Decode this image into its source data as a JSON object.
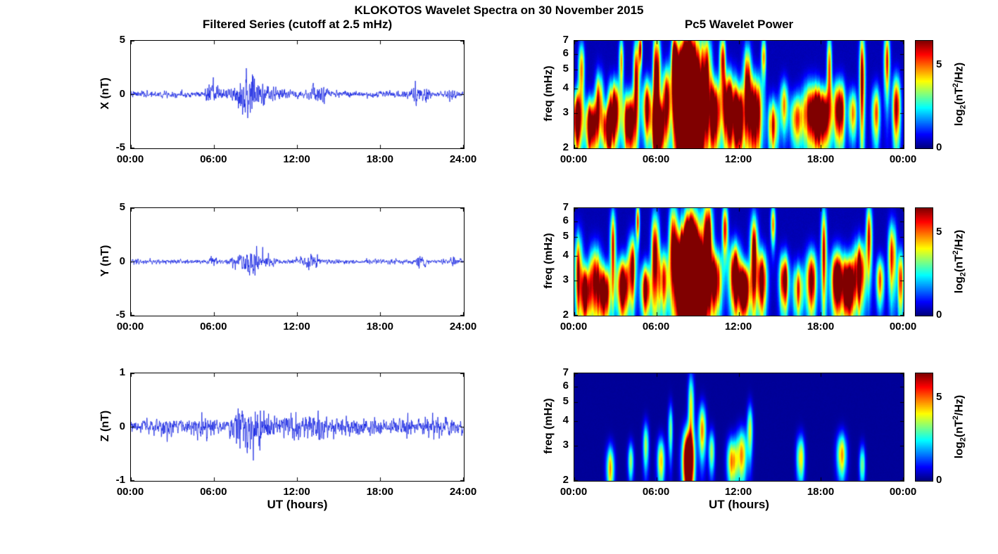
{
  "title": "KLOKOTOS Wavelet Spectra on 30 November 2015",
  "left_column": {
    "title": "Filtered Series (cutoff at 2.5 mHz)",
    "xlabel": "UT (hours)"
  },
  "right_column": {
    "title": "Pc5 Wavelet Power",
    "xlabel": "UT (hours)",
    "colorbar": {
      "label_parts": {
        "prefix": "log",
        "sub": "2",
        "mid": "(nT",
        "sup": "2",
        "suffix": "/Hz)"
      },
      "tick_labels": [
        "5",
        "0"
      ],
      "tick_vals": [
        5,
        0
      ],
      "clim": [
        0,
        6.5
      ]
    }
  },
  "chart_data": [
    {
      "type": "line",
      "component": "X",
      "ylabel": "X (nT)",
      "ylim": [
        -5,
        5
      ],
      "ytick_vals": [
        5,
        0,
        -5
      ],
      "ytick_labels": [
        "5",
        "0",
        "-5"
      ],
      "xticks": [
        "00:00",
        "06:00",
        "12:00",
        "18:00",
        "24:00"
      ],
      "x_range_hours": [
        0,
        24
      ],
      "line_color": "#0010E0",
      "noise_base": 0.2,
      "seed": 7,
      "bursts": [
        [
          5.8,
          0.25,
          0.5
        ],
        [
          6.4,
          0.3,
          0.3
        ],
        [
          7.6,
          0.3,
          0.4
        ],
        [
          8.3,
          0.35,
          1.2
        ],
        [
          8.9,
          0.35,
          0.7
        ],
        [
          9.6,
          0.4,
          0.35
        ],
        [
          10.6,
          0.5,
          0.2
        ],
        [
          13.2,
          0.25,
          0.55
        ],
        [
          13.9,
          0.2,
          0.35
        ],
        [
          20.6,
          0.15,
          0.55
        ],
        [
          21.3,
          0.2,
          0.4
        ],
        [
          23.1,
          0.25,
          0.25
        ]
      ]
    },
    {
      "type": "heatmap",
      "component": "X",
      "ylabel": "freq (mHz)",
      "f_range": [
        2,
        7
      ],
      "f_scale": "log",
      "ytick_vals": [
        7,
        6,
        5,
        4,
        3,
        2
      ],
      "ytick_labels": [
        "7",
        "6",
        "5",
        "4",
        "3",
        "2"
      ],
      "xticks": [
        "00:00",
        "06:00",
        "12:00",
        "18:00",
        "00:00"
      ],
      "clim": [
        0,
        6.5
      ],
      "floor": 0.35,
      "streak_amp": 0.8,
      "seed": 21,
      "blobs": [
        [
          0.2,
          2.8,
          0.25,
          0.7,
          7
        ],
        [
          0.5,
          5.0,
          0.15,
          1.2,
          4.5
        ],
        [
          1.2,
          2.6,
          0.3,
          0.6,
          7
        ],
        [
          1.8,
          3.4,
          0.2,
          0.9,
          5
        ],
        [
          2.4,
          2.5,
          0.25,
          0.5,
          6.5
        ],
        [
          2.9,
          3.1,
          0.3,
          0.8,
          7
        ],
        [
          3.4,
          5.5,
          0.12,
          1.2,
          4
        ],
        [
          4.0,
          2.7,
          0.3,
          0.7,
          7.5
        ],
        [
          4.5,
          4.5,
          0.15,
          1.6,
          5.5
        ],
        [
          4.8,
          6.4,
          0.1,
          0.9,
          4.5
        ],
        [
          5.3,
          3.2,
          0.25,
          0.8,
          6
        ],
        [
          6.0,
          4.5,
          0.18,
          2.0,
          7
        ],
        [
          6.1,
          2.5,
          0.3,
          0.6,
          7
        ],
        [
          6.7,
          3.5,
          0.2,
          1.0,
          5.5
        ],
        [
          7.3,
          5.5,
          0.15,
          1.4,
          6
        ],
        [
          7.9,
          3.5,
          0.45,
          1.5,
          10
        ],
        [
          8.4,
          4.0,
          0.5,
          2.3,
          12
        ],
        [
          8.9,
          2.8,
          0.4,
          1.0,
          10
        ],
        [
          9.6,
          4.6,
          0.25,
          1.8,
          7
        ],
        [
          10.2,
          3.0,
          0.3,
          0.9,
          7
        ],
        [
          10.8,
          5.6,
          0.15,
          1.2,
          5
        ],
        [
          11.3,
          3.2,
          0.35,
          1.0,
          7.5
        ],
        [
          12.0,
          2.8,
          0.3,
          0.8,
          7
        ],
        [
          12.6,
          4.2,
          0.2,
          1.5,
          6
        ],
        [
          13.2,
          3.0,
          0.35,
          1.0,
          7.5
        ],
        [
          13.8,
          5.8,
          0.12,
          1.0,
          4.5
        ],
        [
          14.5,
          2.6,
          0.25,
          0.6,
          5
        ],
        [
          15.3,
          3.3,
          0.2,
          0.7,
          4
        ],
        [
          16.2,
          2.8,
          0.3,
          0.6,
          4.5
        ],
        [
          17.3,
          3.0,
          0.4,
          0.8,
          7
        ],
        [
          18.1,
          2.9,
          0.35,
          0.7,
          7
        ],
        [
          18.6,
          5.0,
          0.12,
          1.6,
          4.5
        ],
        [
          19.3,
          3.1,
          0.3,
          0.8,
          7
        ],
        [
          20.3,
          3.0,
          0.2,
          0.6,
          4.5
        ],
        [
          21.0,
          4.5,
          0.15,
          2.0,
          5.5
        ],
        [
          22.0,
          3.0,
          0.2,
          0.7,
          4.5
        ],
        [
          22.8,
          5.5,
          0.15,
          1.5,
          5
        ],
        [
          23.5,
          3.2,
          0.2,
          0.9,
          5.5
        ]
      ]
    },
    {
      "type": "line",
      "component": "Y",
      "ylabel": "Y (nT)",
      "ylim": [
        -5,
        5
      ],
      "ytick_vals": [
        5,
        0,
        -5
      ],
      "ytick_labels": [
        "5",
        "0",
        "-5"
      ],
      "xticks": [
        "00:00",
        "06:00",
        "12:00",
        "18:00",
        "24:00"
      ],
      "x_range_hours": [
        0,
        24
      ],
      "line_color": "#0010E0",
      "noise_base": 0.15,
      "seed": 8,
      "bursts": [
        [
          5.8,
          0.2,
          0.25
        ],
        [
          7.8,
          0.3,
          0.35
        ],
        [
          8.6,
          0.3,
          0.9
        ],
        [
          9.3,
          0.3,
          0.4
        ],
        [
          10.0,
          0.3,
          0.25
        ],
        [
          12.6,
          0.4,
          0.2
        ],
        [
          13.3,
          0.3,
          0.25
        ],
        [
          20.9,
          0.25,
          0.3
        ],
        [
          23.3,
          0.2,
          0.2
        ]
      ]
    },
    {
      "type": "heatmap",
      "component": "Y",
      "ylabel": "freq (mHz)",
      "f_range": [
        2,
        7
      ],
      "f_scale": "log",
      "ytick_vals": [
        7,
        6,
        5,
        4,
        3,
        2
      ],
      "ytick_labels": [
        "7",
        "6",
        "5",
        "4",
        "3",
        "2"
      ],
      "xticks": [
        "00:00",
        "06:00",
        "12:00",
        "18:00",
        "00:00"
      ],
      "clim": [
        0,
        6.5
      ],
      "floor": 0.33,
      "streak_amp": 0.8,
      "seed": 22,
      "blobs": [
        [
          0.3,
          3.3,
          0.2,
          1.2,
          5.5
        ],
        [
          0.8,
          2.6,
          0.25,
          0.6,
          6.5
        ],
        [
          1.5,
          3.0,
          0.3,
          0.9,
          7
        ],
        [
          2.2,
          2.6,
          0.3,
          0.6,
          6.5
        ],
        [
          2.8,
          4.5,
          0.15,
          1.5,
          5
        ],
        [
          3.5,
          2.8,
          0.3,
          0.7,
          7
        ],
        [
          4.2,
          3.5,
          0.2,
          1.0,
          6
        ],
        [
          4.6,
          6.0,
          0.1,
          1.0,
          4.5
        ],
        [
          5.2,
          2.7,
          0.25,
          0.6,
          6
        ],
        [
          5.9,
          4.0,
          0.2,
          1.6,
          6
        ],
        [
          6.5,
          3.0,
          0.25,
          0.8,
          5.5
        ],
        [
          7.2,
          4.5,
          0.2,
          1.8,
          6.5
        ],
        [
          7.9,
          3.2,
          0.4,
          1.2,
          9
        ],
        [
          8.5,
          3.6,
          0.45,
          1.9,
          12
        ],
        [
          9.1,
          2.8,
          0.4,
          1.0,
          10
        ],
        [
          9.7,
          4.8,
          0.25,
          1.8,
          7.5
        ],
        [
          10.3,
          3.0,
          0.3,
          0.8,
          6.5
        ],
        [
          11.0,
          5.5,
          0.15,
          1.2,
          5
        ],
        [
          11.7,
          3.2,
          0.3,
          0.9,
          7
        ],
        [
          12.4,
          2.7,
          0.3,
          0.6,
          7
        ],
        [
          13.1,
          4.0,
          0.2,
          1.5,
          6
        ],
        [
          13.7,
          3.0,
          0.25,
          0.8,
          6
        ],
        [
          14.5,
          5.8,
          0.12,
          1.0,
          4.5
        ],
        [
          15.3,
          3.0,
          0.25,
          0.7,
          5.5
        ],
        [
          16.3,
          2.7,
          0.25,
          0.6,
          5
        ],
        [
          17.3,
          3.0,
          0.3,
          0.8,
          5.5
        ],
        [
          18.2,
          4.2,
          0.15,
          1.8,
          5
        ],
        [
          19.2,
          3.0,
          0.35,
          0.8,
          7
        ],
        [
          20.0,
          2.8,
          0.3,
          0.7,
          7
        ],
        [
          20.8,
          3.3,
          0.3,
          0.9,
          7
        ],
        [
          21.5,
          5.0,
          0.15,
          1.5,
          5
        ],
        [
          22.3,
          3.0,
          0.2,
          0.6,
          4.5
        ],
        [
          23.2,
          4.0,
          0.2,
          1.2,
          5
        ],
        [
          23.8,
          3.0,
          0.15,
          0.8,
          5
        ]
      ]
    },
    {
      "type": "line",
      "component": "Z",
      "ylabel": "Z (nT)",
      "ylim": [
        -1,
        1
      ],
      "ytick_vals": [
        1,
        0,
        -1
      ],
      "ytick_labels": [
        "1",
        "0",
        "-1"
      ],
      "xticks": [
        "00:00",
        "06:00",
        "12:00",
        "18:00",
        "24:00"
      ],
      "x_range_hours": [
        0,
        24
      ],
      "line_color": "#0010E0",
      "noise_base": 0.09,
      "seed": 9,
      "bursts": [
        [
          2.5,
          0.6,
          0.05
        ],
        [
          5.1,
          0.4,
          0.06
        ],
        [
          7.7,
          0.35,
          0.12
        ],
        [
          8.4,
          0.4,
          0.2
        ],
        [
          9.3,
          0.4,
          0.12
        ],
        [
          10.2,
          0.4,
          0.08
        ],
        [
          11.9,
          0.5,
          0.08
        ],
        [
          13.1,
          0.4,
          0.08
        ],
        [
          14.2,
          0.4,
          0.05
        ],
        [
          16.5,
          0.5,
          0.04
        ],
        [
          20.1,
          0.4,
          0.05
        ],
        [
          22.0,
          0.5,
          0.04
        ]
      ]
    },
    {
      "type": "heatmap",
      "component": "Z",
      "ylabel": "freq (mHz)",
      "f_range": [
        2,
        7
      ],
      "f_scale": "log",
      "ytick_vals": [
        7,
        6,
        5,
        4,
        3,
        2
      ],
      "ytick_labels": [
        "7",
        "6",
        "5",
        "4",
        "3",
        "2"
      ],
      "xticks": [
        "00:00",
        "06:00",
        "12:00",
        "18:00",
        "00:00"
      ],
      "clim": [
        0,
        6.5
      ],
      "floor": 0.16,
      "streak_amp": 0.4,
      "seed": 23,
      "blobs": [
        [
          2.6,
          2.3,
          0.2,
          0.45,
          5
        ],
        [
          4.1,
          2.5,
          0.15,
          0.4,
          3.5
        ],
        [
          5.2,
          3.0,
          0.15,
          0.6,
          4
        ],
        [
          6.3,
          2.5,
          0.2,
          0.5,
          4.5
        ],
        [
          7.0,
          3.6,
          0.12,
          0.8,
          3.5
        ],
        [
          8.3,
          2.5,
          0.28,
          0.7,
          11
        ],
        [
          8.5,
          4.6,
          0.15,
          1.5,
          4.5
        ],
        [
          9.3,
          3.6,
          0.2,
          0.8,
          5
        ],
        [
          10.0,
          2.8,
          0.15,
          0.5,
          4
        ],
        [
          11.5,
          2.5,
          0.25,
          0.5,
          5.5
        ],
        [
          12.2,
          2.7,
          0.25,
          0.6,
          5.5
        ],
        [
          12.8,
          3.6,
          0.15,
          0.8,
          4
        ],
        [
          16.5,
          2.6,
          0.2,
          0.5,
          4.5
        ],
        [
          19.5,
          2.7,
          0.25,
          0.5,
          5
        ],
        [
          21.0,
          2.4,
          0.15,
          0.4,
          3.5
        ]
      ]
    }
  ]
}
